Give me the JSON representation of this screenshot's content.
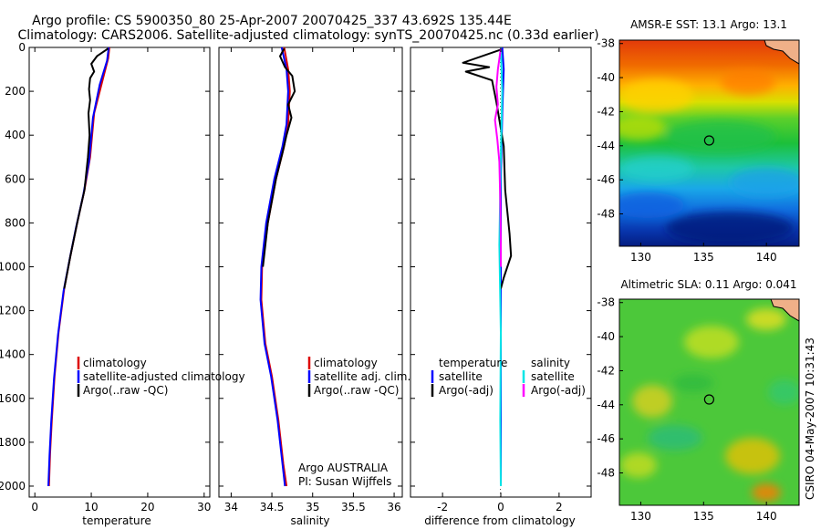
{
  "title": {
    "line1": "Argo profile: CS 5900350_80 25-Apr-2007 20070425_337 43.692S 135.44E",
    "line2": "Climatology: CARS2006. Satellite-adjusted climatology: synTS_20070425.nc (0.33d earlier)"
  },
  "footer_stamp": "CSIRO 04-May-2007 10:31:43",
  "colors": {
    "climatology": "#dd0000",
    "satellite": "#0000ff",
    "argo": "#000000",
    "sal_satellite": "#00e6e6",
    "sal_argo": "#ff00ff"
  },
  "chart_data": [
    {
      "id": "temperature",
      "type": "line",
      "xlabel": "temperature",
      "xlim": [
        -1,
        31
      ],
      "ylim": [
        2050,
        0
      ],
      "xticks": [
        "0",
        "10",
        "20",
        "30"
      ],
      "yticks": [
        "0",
        "200",
        "400",
        "600",
        "800",
        "1000",
        "1200",
        "1400",
        "1600",
        "1800",
        "2000"
      ],
      "legend": [
        "climatology",
        "satellite-adjusted climatology",
        "Argo(..raw -QC)"
      ],
      "series": [
        {
          "name": "climatology",
          "color": "#dd0000",
          "points": [
            [
              13.2,
              0
            ],
            [
              13.0,
              50
            ],
            [
              12.0,
              150
            ],
            [
              10.5,
              300
            ],
            [
              9.8,
              500
            ],
            [
              8.8,
              650
            ],
            [
              7.5,
              800
            ],
            [
              6.3,
              950
            ],
            [
              5.2,
              1100
            ],
            [
              4.2,
              1300
            ],
            [
              3.5,
              1500
            ],
            [
              3.0,
              1700
            ],
            [
              2.7,
              1850
            ],
            [
              2.5,
              2000
            ]
          ]
        },
        {
          "name": "satellite-adjusted climatology",
          "color": "#0000ff",
          "points": [
            [
              13.1,
              0
            ],
            [
              12.8,
              60
            ],
            [
              11.5,
              170
            ],
            [
              10.3,
              320
            ],
            [
              9.6,
              520
            ],
            [
              8.6,
              670
            ],
            [
              7.3,
              820
            ],
            [
              6.2,
              960
            ],
            [
              5.1,
              1110
            ],
            [
              4.1,
              1310
            ],
            [
              3.4,
              1510
            ],
            [
              2.9,
              1710
            ],
            [
              2.6,
              1860
            ],
            [
              2.4,
              2000
            ]
          ]
        },
        {
          "name": "Argo(..raw -QC)",
          "color": "#000000",
          "points": [
            [
              13.0,
              5
            ],
            [
              11.0,
              40
            ],
            [
              10.0,
              75
            ],
            [
              10.5,
              110
            ],
            [
              9.8,
              140
            ],
            [
              9.6,
              190
            ],
            [
              9.8,
              240
            ],
            [
              9.5,
              300
            ],
            [
              9.7,
              400
            ],
            [
              9.4,
              500
            ],
            [
              8.8,
              650
            ],
            [
              7.5,
              800
            ],
            [
              6.3,
              950
            ],
            [
              5.2,
              1100
            ]
          ]
        }
      ]
    },
    {
      "id": "salinity",
      "type": "line",
      "xlabel": "salinity",
      "xlim": [
        33.85,
        36.1
      ],
      "ylim": [
        2050,
        0
      ],
      "xticks": [
        "34",
        "34.5",
        "35",
        "35.5",
        "36"
      ],
      "legend": [
        "climatology",
        "satellite adj. clim.",
        "Argo(..raw -QC)"
      ],
      "annotation": [
        "Argo AUSTRALIA",
        "PI: Susan Wijffels"
      ],
      "series": [
        {
          "name": "climatology",
          "color": "#dd0000",
          "points": [
            [
              34.65,
              0
            ],
            [
              34.7,
              100
            ],
            [
              34.72,
              200
            ],
            [
              34.7,
              350
            ],
            [
              34.65,
              450
            ],
            [
              34.55,
              600
            ],
            [
              34.45,
              800
            ],
            [
              34.38,
              1000
            ],
            [
              34.37,
              1150
            ],
            [
              34.42,
              1350
            ],
            [
              34.5,
              1500
            ],
            [
              34.58,
              1700
            ],
            [
              34.64,
              1900
            ],
            [
              34.68,
              2000
            ]
          ]
        },
        {
          "name": "satellite adj. clim.",
          "color": "#0000ff",
          "points": [
            [
              34.62,
              0
            ],
            [
              34.68,
              100
            ],
            [
              34.7,
              200
            ],
            [
              34.68,
              350
            ],
            [
              34.63,
              450
            ],
            [
              34.53,
              600
            ],
            [
              34.43,
              800
            ],
            [
              34.37,
              1000
            ],
            [
              34.36,
              1150
            ],
            [
              34.41,
              1350
            ],
            [
              34.49,
              1500
            ],
            [
              34.57,
              1700
            ],
            [
              34.63,
              1900
            ],
            [
              34.66,
              2000
            ]
          ]
        },
        {
          "name": "Argo(..raw -QC)",
          "color": "#000000",
          "points": [
            [
              34.65,
              5
            ],
            [
              34.6,
              40
            ],
            [
              34.66,
              90
            ],
            [
              34.75,
              130
            ],
            [
              34.78,
              200
            ],
            [
              34.7,
              260
            ],
            [
              34.74,
              320
            ],
            [
              34.68,
              400
            ],
            [
              34.63,
              480
            ],
            [
              34.55,
              600
            ],
            [
              34.45,
              800
            ],
            [
              34.39,
              1000
            ]
          ]
        }
      ]
    },
    {
      "id": "difference",
      "type": "line",
      "xlabel": "difference from climatology",
      "xlim": [
        -3.1,
        3.1
      ],
      "ylim": [
        2050,
        0
      ],
      "xticks": [
        "-2",
        "0",
        "2"
      ],
      "legend_left_title": "temperature",
      "legend_right_title": "salinity",
      "legend": [
        "satellite",
        "Argo(-adj)",
        "satellite",
        "Argo(-adj)"
      ],
      "series": [
        {
          "name": "temperature satellite",
          "color": "#0000ff",
          "points": [
            [
              0.05,
              0
            ],
            [
              0.1,
              100
            ],
            [
              0.05,
              300
            ],
            [
              0.0,
              600
            ],
            [
              0.0,
              1000
            ],
            [
              0.0,
              1500
            ],
            [
              0.0,
              2000
            ]
          ]
        },
        {
          "name": "temperature Argo(-adj)",
          "color": "#000000",
          "points": [
            [
              0.0,
              10
            ],
            [
              -1.3,
              70
            ],
            [
              -0.4,
              90
            ],
            [
              -1.2,
              110
            ],
            [
              -0.3,
              150
            ],
            [
              -0.15,
              250
            ],
            [
              0.1,
              450
            ],
            [
              0.15,
              650
            ],
            [
              0.3,
              850
            ],
            [
              0.35,
              950
            ],
            [
              0.1,
              1050
            ],
            [
              0.0,
              1100
            ]
          ]
        },
        {
          "name": "salinity satellite",
          "color": "#00e6e6",
          "points": [
            [
              0.0,
              0
            ],
            [
              0.05,
              200
            ],
            [
              0.0,
              500
            ],
            [
              -0.05,
              900
            ],
            [
              0.0,
              1300
            ],
            [
              -0.02,
              1700
            ],
            [
              0.0,
              2000
            ]
          ]
        },
        {
          "name": "salinity Argo(-adj)",
          "color": "#ff00ff",
          "points": [
            [
              0.0,
              5
            ],
            [
              -0.1,
              100
            ],
            [
              -0.15,
              180
            ],
            [
              -0.1,
              260
            ],
            [
              -0.2,
              330
            ],
            [
              -0.12,
              420
            ],
            [
              -0.05,
              520
            ],
            [
              -0.02,
              700
            ],
            [
              0.0,
              900
            ],
            [
              0.0,
              1000
            ]
          ]
        }
      ]
    },
    {
      "id": "sst_map",
      "type": "heatmap",
      "title": "AMSR-E SST: 13.1  Argo: 13.1",
      "xticks": [
        "130",
        "135",
        "140"
      ],
      "yticks": [
        "-38",
        "-40",
        "-42",
        "-44",
        "-46",
        "-48"
      ],
      "xlim": [
        128.3,
        142.6
      ],
      "ylim": [
        -49.9,
        -37.8
      ],
      "marker": [
        135.44,
        -43.692
      ]
    },
    {
      "id": "sla_map",
      "type": "heatmap",
      "title": "Altimetric SLA: 0.11  Argo: 0.041",
      "xticks": [
        "130",
        "135",
        "140"
      ],
      "yticks": [
        "-38",
        "-40",
        "-42",
        "-44",
        "-46",
        "-48"
      ],
      "xlim": [
        128.3,
        142.6
      ],
      "ylim": [
        -49.9,
        -37.8
      ],
      "marker": [
        135.44,
        -43.692
      ]
    }
  ]
}
